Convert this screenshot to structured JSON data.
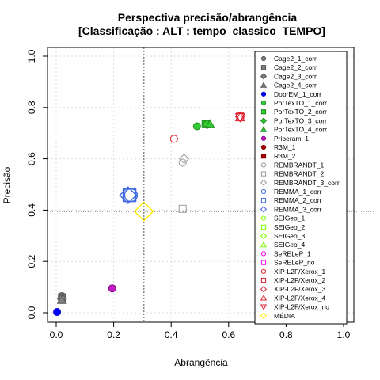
{
  "chart_data": {
    "type": "scatter",
    "title": "Perspectiva precisão/abrangência",
    "subtitle": "[Classificação : ALT : tempo_classico_TEMPO]",
    "xlabel": "Abrangência",
    "ylabel": "Precisão",
    "xlim": [
      0,
      1
    ],
    "ylim": [
      0,
      1
    ],
    "xticks": [
      "0.0",
      "0.2",
      "0.4",
      "0.6",
      "0.8",
      "1.0"
    ],
    "yticks": [
      "0.0",
      "0.2",
      "0.4",
      "0.6",
      "0.8",
      "1.0"
    ],
    "grid": true,
    "legend_position": "right",
    "mean_x": 0.305,
    "mean_y": 0.395,
    "series": [
      {
        "name": "Cage2_1_corr",
        "shape": "circle",
        "color": "#555555",
        "fill": "#808080",
        "x": 0.02,
        "y": 0.065
      },
      {
        "name": "Cage2_2_corr",
        "shape": "square",
        "color": "#555555",
        "fill": "#808080",
        "x": 0.02,
        "y": 0.06
      },
      {
        "name": "Cage2_3_corr",
        "shape": "diamond",
        "color": "#555555",
        "fill": "#808080",
        "x": 0.02,
        "y": 0.055
      },
      {
        "name": "Cage2_4_corr",
        "shape": "triangle",
        "color": "#555555",
        "fill": "#808080",
        "x": 0.02,
        "y": 0.05
      },
      {
        "name": "DobrEM_1_corr",
        "shape": "circle",
        "color": "#0000cc",
        "fill": "#0000ff",
        "x": 0.003,
        "y": 0.003
      },
      {
        "name": "PorTexTO_1_corr",
        "shape": "circle",
        "color": "#228b22",
        "fill": "#32cd32",
        "x": 0.49,
        "y": 0.727
      },
      {
        "name": "PorTexTO_2_corr",
        "shape": "square",
        "color": "#228b22",
        "fill": "#32cd32",
        "x": 0.52,
        "y": 0.735
      },
      {
        "name": "PorTexTO_3_corr",
        "shape": "diamond",
        "color": "#228b22",
        "fill": "#32cd32",
        "x": 0.525,
        "y": 0.735
      },
      {
        "name": "PorTexTO_4_corr",
        "shape": "triangle",
        "color": "#228b22",
        "fill": "#32cd32",
        "x": 0.535,
        "y": 0.735
      },
      {
        "name": "Priberam_1",
        "shape": "circle",
        "color": "#8b008b",
        "fill": "#c020c0",
        "x": 0.195,
        "y": 0.095
      },
      {
        "name": "R3M_1",
        "shape": "circle",
        "color": "#8b0000",
        "fill": "#a00000",
        "x": null,
        "y": null
      },
      {
        "name": "R3M_2",
        "shape": "square",
        "color": "#8b0000",
        "fill": "#a00000",
        "x": null,
        "y": null
      },
      {
        "name": "REMBRANDT_1",
        "shape": "circle",
        "color": "#999999",
        "fill": "none",
        "x": 0.44,
        "y": 0.585
      },
      {
        "name": "REMBRANDT_2",
        "shape": "square",
        "color": "#999999",
        "fill": "none",
        "x": 0.44,
        "y": 0.405
      },
      {
        "name": "REMBRANDT_3_corr",
        "shape": "diamond",
        "color": "#999999",
        "fill": "none",
        "x": 0.445,
        "y": 0.6
      },
      {
        "name": "REMMA_1_corr",
        "shape": "circle",
        "color": "#4169e1",
        "fill": "none",
        "x": 0.26,
        "y": 0.458
      },
      {
        "name": "REMMA_2_corr",
        "shape": "square",
        "color": "#4169e1",
        "fill": "none",
        "x": 0.255,
        "y": 0.458
      },
      {
        "name": "REMMA_3_corr",
        "shape": "diamond",
        "color": "#4169e1",
        "fill": "none",
        "x": 0.25,
        "y": 0.458
      },
      {
        "name": "SEIGeo_1",
        "shape": "circle",
        "color": "#7cfc00",
        "fill": "none",
        "x": null,
        "y": null
      },
      {
        "name": "SEIGeo_2",
        "shape": "square",
        "color": "#7cfc00",
        "fill": "none",
        "x": null,
        "y": null
      },
      {
        "name": "SEIGeo_3",
        "shape": "diamond",
        "color": "#7cfc00",
        "fill": "none",
        "x": null,
        "y": null
      },
      {
        "name": "SEIGeo_4",
        "shape": "triangle",
        "color": "#7cfc00",
        "fill": "none",
        "x": null,
        "y": null
      },
      {
        "name": "SeRELeP_1",
        "shape": "circle",
        "color": "#ff00ff",
        "fill": "none",
        "x": null,
        "y": null
      },
      {
        "name": "SeRELeP_no",
        "shape": "square",
        "color": "#ff00ff",
        "fill": "none",
        "x": null,
        "y": null
      },
      {
        "name": "XIP-L2F/Xerox_1",
        "shape": "circle",
        "color": "#e0202e",
        "fill": "none",
        "x": 0.41,
        "y": 0.678
      },
      {
        "name": "XIP-L2F/Xerox_2",
        "shape": "square",
        "color": "#e0202e",
        "fill": "none",
        "x": 0.64,
        "y": 0.765
      },
      {
        "name": "XIP-L2F/Xerox_3",
        "shape": "diamond",
        "color": "#e0202e",
        "fill": "none",
        "x": 0.64,
        "y": 0.765
      },
      {
        "name": "XIP-L2F/Xerox_4",
        "shape": "triangle",
        "color": "#e0202e",
        "fill": "none",
        "x": 0.64,
        "y": 0.762
      },
      {
        "name": "XIP-L2F/Xerox_no",
        "shape": "triangle-down",
        "color": "#e0202e",
        "fill": "none",
        "x": 0.64,
        "y": 0.762
      },
      {
        "name": "MÉDIA",
        "shape": "diamond",
        "color": "#ffee00",
        "fill": "none",
        "x": 0.305,
        "y": 0.395
      }
    ]
  }
}
